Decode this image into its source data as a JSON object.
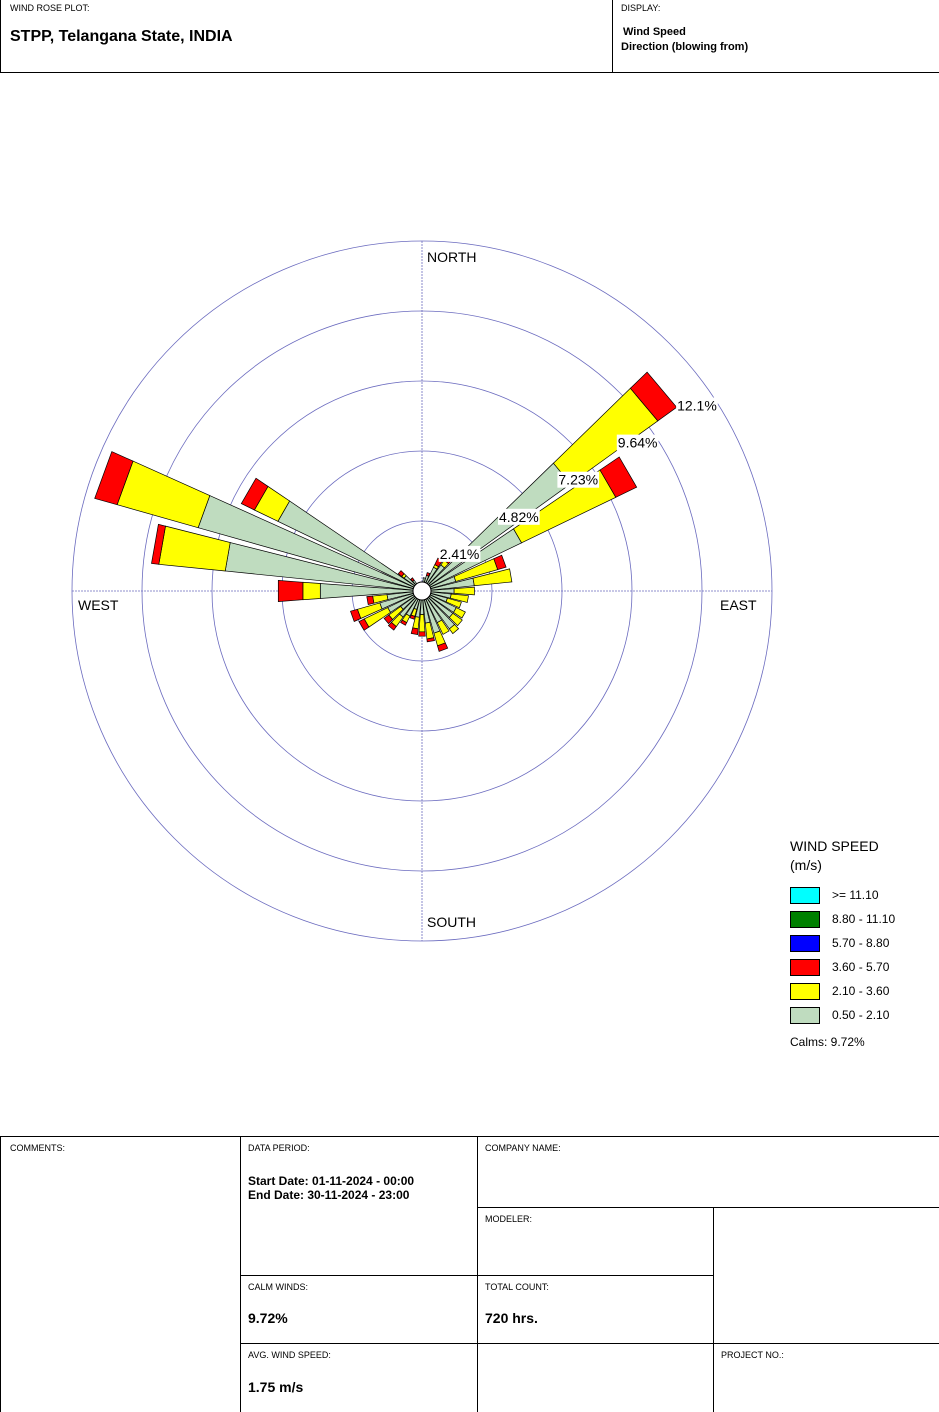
{
  "header": {
    "plot_label": "WIND ROSE PLOT:",
    "station": "STPP, Telangana State, INDIA",
    "display_label": "DISPLAY:",
    "display_line1": "Wind Speed",
    "display_line2": "Direction (blowing from)"
  },
  "chart_data": {
    "type": "wind-rose",
    "direction_labels": {
      "north": "NORTH",
      "south": "SOUTH",
      "east": "EAST",
      "west": "WEST"
    },
    "ring_labels": [
      "2.41%",
      "4.82%",
      "7.23%",
      "9.64%",
      "12.1%"
    ],
    "ring_values": [
      2.41,
      4.82,
      7.23,
      9.64,
      12.05
    ],
    "max_percent": 12.05,
    "speed_bins": [
      "0.50 - 2.10",
      "2.10 - 3.60",
      "3.60 - 5.70",
      "5.70 - 8.80",
      "8.80 - 11.10",
      ">= 11.10"
    ],
    "colors": [
      "#bfdcbf",
      "#ffff00",
      "#ff0000",
      "#0000ff",
      "#008000",
      "#00ffff"
    ],
    "directions": [
      0,
      10,
      20,
      30,
      40,
      50,
      60,
      70,
      80,
      90,
      100,
      110,
      120,
      130,
      140,
      150,
      160,
      170,
      180,
      190,
      200,
      210,
      220,
      230,
      240,
      250,
      260,
      270,
      280,
      290,
      300,
      310,
      320,
      330,
      340,
      350
    ],
    "frequencies_percent": [
      [
        0.0,
        0.0,
        0.0,
        0,
        0,
        0
      ],
      [
        0.15,
        0.0,
        0.0,
        0,
        0,
        0
      ],
      [
        0.25,
        0.0,
        0.1,
        0,
        0,
        0
      ],
      [
        0.6,
        0.1,
        0.25,
        0,
        0,
        0
      ],
      [
        0.8,
        0.2,
        0.1,
        0,
        0,
        0
      ],
      [
        6.0,
        3.7,
        0.8,
        0,
        0,
        0
      ],
      [
        3.5,
        3.6,
        0.8,
        0,
        0,
        0
      ],
      [
        0.9,
        1.5,
        0.3,
        0,
        0,
        0
      ],
      [
        1.5,
        1.3,
        0.0,
        0,
        0,
        0
      ],
      [
        0.8,
        0.7,
        0.0,
        0,
        0,
        0
      ],
      [
        0.7,
        0.6,
        0.0,
        0,
        0,
        0
      ],
      [
        0.6,
        0.5,
        0.0,
        0,
        0,
        0
      ],
      [
        1.0,
        0.35,
        0.0,
        0,
        0,
        0
      ],
      [
        1.0,
        0.4,
        0.0,
        0,
        0,
        0
      ],
      [
        1.3,
        0.2,
        0.0,
        0,
        0,
        0
      ],
      [
        0.9,
        0.45,
        0.0,
        0,
        0,
        0
      ],
      [
        1.2,
        0.45,
        0.2,
        0,
        0,
        0
      ],
      [
        0.8,
        0.55,
        0.1,
        0,
        0,
        0
      ],
      [
        0.5,
        0.6,
        0.15,
        0,
        0,
        0
      ],
      [
        0.6,
        0.4,
        0.2,
        0,
        0,
        0
      ],
      [
        0.35,
        0.25,
        0.1,
        0,
        0,
        0
      ],
      [
        0.65,
        0.25,
        0.1,
        0,
        0,
        0
      ],
      [
        0.8,
        0.4,
        0.15,
        0,
        0,
        0
      ],
      [
        0.6,
        0.5,
        0.2,
        0,
        0,
        0
      ],
      [
        1.0,
        0.9,
        0.2,
        0,
        0,
        0
      ],
      [
        1.2,
        0.8,
        0.25,
        0,
        0,
        0
      ],
      [
        0.9,
        0.5,
        0.2,
        0,
        0,
        0
      ],
      [
        3.2,
        0.6,
        0.85,
        0,
        0,
        0
      ],
      [
        6.5,
        2.3,
        0.25,
        0,
        0,
        0
      ],
      [
        7.7,
        2.9,
        0.8,
        0,
        0,
        0
      ],
      [
        5.2,
        0.9,
        0.5,
        0,
        0,
        0
      ],
      [
        0.45,
        0.1,
        0.15,
        0,
        0,
        0
      ],
      [
        0.15,
        0.0,
        0.1,
        0,
        0,
        0
      ],
      [
        0.0,
        0.0,
        0.0,
        0,
        0,
        0
      ],
      [
        0.0,
        0.0,
        0.0,
        0,
        0,
        0
      ],
      [
        0.0,
        0.0,
        0.0,
        0,
        0,
        0
      ]
    ],
    "legend": {
      "title_line1": "WIND SPEED",
      "title_line2": "(m/s)",
      "entries": [
        ">= 11.10",
        "8.80 - 11.10",
        "5.70 - 8.80",
        "3.60 - 5.70",
        "2.10 - 3.60",
        "0.50 - 2.10"
      ],
      "entry_colors": [
        "#00ffff",
        "#008000",
        "#0000ff",
        "#ff0000",
        "#ffff00",
        "#bfdcbf"
      ],
      "calms": "Calms: 9.72%"
    }
  },
  "footer": {
    "comments_label": "COMMENTS:",
    "data_period_label": "DATA PERIOD:",
    "start_date": "Start Date: 01-11-2024 - 00:00",
    "end_date": "End Date: 30-11-2024 - 23:00",
    "company_label": "COMPANY NAME:",
    "modeler_label": "MODELER:",
    "calm_label": "CALM WINDS:",
    "calm_value": "9.72%",
    "total_label": "TOTAL COUNT:",
    "total_value": "720 hrs.",
    "avg_label": "AVG. WIND SPEED:",
    "avg_value": "1.75 m/s",
    "project_label": "PROJECT NO.:"
  }
}
